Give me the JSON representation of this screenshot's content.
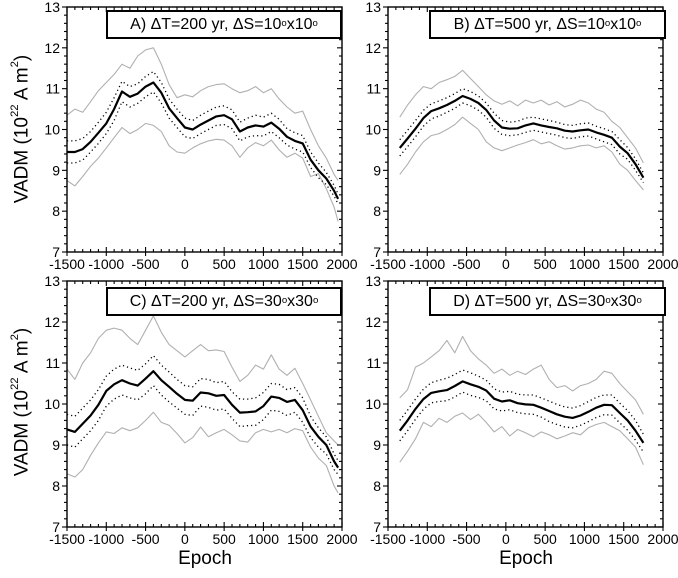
{
  "figure": {
    "xlabel": "Epoch",
    "ylabel_parts": {
      "prefix": "VADM (10",
      "sup1": "22",
      "mid": " A m",
      "sup2": "2",
      "suffix": ")"
    },
    "colors": {
      "mean_line": "#000000",
      "dotted_line": "#000000",
      "band_line": "#b0b0b0",
      "background": "#ffffff"
    }
  },
  "chart_data": [
    {
      "type": "line",
      "id": "A",
      "title_parts": {
        "main": "A) ΔT=200 yr, ΔS=10",
        "sup1": "o",
        "mid": "x10",
        "sup2": "o"
      },
      "xlabel": "Epoch",
      "ylabel": "VADM (10^22 A m^2)",
      "xlim": [
        -1500,
        2000
      ],
      "ylim": [
        7,
        13
      ],
      "xticks": [
        -1500,
        -1000,
        -500,
        0,
        500,
        1000,
        1500,
        2000
      ],
      "yticks": [
        7,
        8,
        9,
        10,
        11,
        12,
        13
      ],
      "x_minor_step": 100,
      "y_minor_step": 0.2,
      "grid": false,
      "legend": "none",
      "x": [
        -1500,
        -1400,
        -1300,
        -1200,
        -1100,
        -1000,
        -900,
        -800,
        -700,
        -600,
        -500,
        -400,
        -300,
        -200,
        -100,
        0,
        100,
        200,
        300,
        400,
        500,
        600,
        700,
        800,
        900,
        1000,
        1100,
        1200,
        1300,
        1400,
        1500,
        1600,
        1700,
        1800,
        1900,
        1950
      ],
      "series": [
        {
          "name": "upper-band-gray",
          "style": "gray",
          "values": [
            10.35,
            10.5,
            10.42,
            10.68,
            10.95,
            11.15,
            11.35,
            11.6,
            11.5,
            11.8,
            11.95,
            12.0,
            11.6,
            11.1,
            10.78,
            10.85,
            10.8,
            10.95,
            11.05,
            11.1,
            11.12,
            11.0,
            10.9,
            10.95,
            11.05,
            10.9,
            11.0,
            10.75,
            10.55,
            10.4,
            10.45,
            10.0,
            9.6,
            9.3,
            8.9,
            8.75
          ]
        },
        {
          "name": "upper-error-dotted",
          "style": "dotted",
          "values": [
            9.72,
            9.72,
            9.78,
            9.95,
            10.18,
            10.42,
            10.78,
            11.18,
            11.05,
            11.12,
            11.3,
            11.42,
            11.15,
            10.75,
            10.5,
            10.28,
            10.22,
            10.35,
            10.45,
            10.55,
            10.58,
            10.48,
            10.18,
            10.28,
            10.35,
            10.3,
            10.4,
            10.25,
            10.02,
            9.92,
            9.85,
            9.45,
            9.18,
            8.95,
            8.63,
            8.42
          ]
        },
        {
          "name": "mean-vadm",
          "style": "solid",
          "values": [
            9.45,
            9.45,
            9.52,
            9.7,
            9.92,
            10.15,
            10.5,
            10.93,
            10.8,
            10.88,
            11.05,
            11.15,
            10.9,
            10.52,
            10.28,
            10.05,
            10.0,
            10.12,
            10.22,
            10.32,
            10.35,
            10.25,
            9.95,
            10.05,
            10.1,
            10.07,
            10.17,
            10.02,
            9.82,
            9.72,
            9.66,
            9.26,
            9.0,
            8.8,
            8.5,
            8.3
          ]
        },
        {
          "name": "lower-error-dotted",
          "style": "dotted",
          "values": [
            9.18,
            9.18,
            9.25,
            9.45,
            9.66,
            9.9,
            10.22,
            10.68,
            10.55,
            10.64,
            10.8,
            10.92,
            10.65,
            10.28,
            10.05,
            9.82,
            9.78,
            9.9,
            10.0,
            10.1,
            10.12,
            10.02,
            9.72,
            9.82,
            9.85,
            9.84,
            9.95,
            9.8,
            9.62,
            9.52,
            9.45,
            9.07,
            8.82,
            8.65,
            8.37,
            8.18
          ]
        },
        {
          "name": "lower-band-gray",
          "style": "gray",
          "values": [
            8.75,
            8.62,
            8.85,
            9.1,
            9.3,
            9.55,
            9.8,
            10.05,
            9.9,
            10.0,
            10.15,
            10.1,
            9.95,
            9.6,
            9.45,
            9.42,
            9.55,
            9.65,
            9.72,
            9.76,
            9.74,
            9.6,
            9.32,
            9.55,
            9.68,
            9.6,
            9.74,
            9.5,
            9.32,
            9.42,
            9.3,
            8.85,
            8.92,
            8.55,
            8.1,
            7.75
          ]
        }
      ]
    },
    {
      "type": "line",
      "id": "B",
      "title_parts": {
        "main": "B) ΔT=500 yr, ΔS=10",
        "sup1": "o",
        "mid": "x10",
        "sup2": "o"
      },
      "xlabel": "Epoch",
      "ylabel": "VADM (10^22 A m^2)",
      "xlim": [
        -1500,
        2000
      ],
      "ylim": [
        7,
        13
      ],
      "xticks": [
        -1500,
        -1000,
        -500,
        0,
        500,
        1000,
        1500,
        2000
      ],
      "yticks": [
        7,
        8,
        9,
        10,
        11,
        12,
        13
      ],
      "x_minor_step": 100,
      "y_minor_step": 0.2,
      "grid": false,
      "legend": "none",
      "x": [
        -1350,
        -1250,
        -1150,
        -1050,
        -950,
        -850,
        -750,
        -650,
        -550,
        -450,
        -350,
        -250,
        -150,
        -50,
        50,
        150,
        250,
        350,
        450,
        550,
        650,
        750,
        850,
        950,
        1050,
        1150,
        1250,
        1350,
        1450,
        1550,
        1650,
        1750
      ],
      "series": [
        {
          "name": "upper-band-gray",
          "style": "gray",
          "values": [
            10.3,
            10.6,
            10.85,
            11.05,
            11.0,
            11.15,
            11.22,
            11.3,
            11.45,
            11.25,
            11.05,
            10.85,
            10.7,
            10.62,
            10.7,
            10.58,
            10.72,
            10.65,
            10.72,
            10.6,
            10.68,
            10.55,
            10.62,
            10.72,
            10.65,
            10.5,
            10.42,
            10.2,
            10.05,
            9.8,
            9.55,
            9.18
          ]
        },
        {
          "name": "upper-error-dotted",
          "style": "dotted",
          "values": [
            9.75,
            9.98,
            10.22,
            10.47,
            10.63,
            10.7,
            10.78,
            10.88,
            11.0,
            10.93,
            10.82,
            10.65,
            10.4,
            10.22,
            10.18,
            10.2,
            10.28,
            10.3,
            10.26,
            10.22,
            10.18,
            10.12,
            10.1,
            10.14,
            10.16,
            10.08,
            10.02,
            9.95,
            9.75,
            9.56,
            9.28,
            8.94
          ]
        },
        {
          "name": "mean-vadm",
          "style": "solid",
          "values": [
            9.55,
            9.78,
            10.02,
            10.28,
            10.45,
            10.52,
            10.6,
            10.7,
            10.82,
            10.75,
            10.65,
            10.48,
            10.22,
            10.05,
            10.02,
            10.03,
            10.1,
            10.15,
            10.1,
            10.06,
            10.03,
            9.97,
            9.95,
            9.98,
            10.0,
            9.93,
            9.87,
            9.8,
            9.58,
            9.42,
            9.15,
            8.82
          ]
        },
        {
          "name": "lower-error-dotted",
          "style": "dotted",
          "values": [
            9.35,
            9.58,
            9.82,
            10.08,
            10.26,
            10.33,
            10.42,
            10.52,
            10.65,
            10.58,
            10.47,
            10.3,
            10.03,
            9.88,
            9.85,
            9.87,
            9.93,
            9.98,
            9.94,
            9.9,
            9.86,
            9.8,
            9.78,
            9.82,
            9.84,
            9.77,
            9.7,
            9.63,
            9.4,
            9.27,
            9.0,
            8.7
          ]
        },
        {
          "name": "lower-band-gray",
          "style": "gray",
          "values": [
            8.9,
            9.15,
            9.45,
            9.7,
            9.85,
            9.9,
            10.0,
            10.12,
            10.3,
            10.15,
            10.0,
            9.7,
            9.55,
            9.48,
            9.55,
            9.62,
            9.68,
            9.75,
            9.65,
            9.7,
            9.6,
            9.52,
            9.55,
            9.6,
            9.62,
            9.55,
            9.6,
            9.45,
            9.15,
            9.0,
            8.75,
            8.52
          ]
        }
      ]
    },
    {
      "type": "line",
      "id": "C",
      "title_parts": {
        "main": "C) ΔT=200 yr, ΔS=30",
        "sup1": "o",
        "mid": "x30",
        "sup2": "o"
      },
      "xlabel": "Epoch",
      "ylabel": "VADM (10^22 A m^2)",
      "xlim": [
        -1500,
        2000
      ],
      "ylim": [
        7,
        13
      ],
      "xticks": [
        -1500,
        -1000,
        -500,
        0,
        500,
        1000,
        1500,
        2000
      ],
      "yticks": [
        7,
        8,
        9,
        10,
        11,
        12,
        13
      ],
      "x_minor_step": 100,
      "y_minor_step": 0.2,
      "grid": false,
      "legend": "none",
      "x": [
        -1500,
        -1400,
        -1300,
        -1200,
        -1100,
        -1000,
        -900,
        -800,
        -700,
        -600,
        -500,
        -400,
        -300,
        -200,
        -100,
        0,
        100,
        200,
        300,
        400,
        500,
        600,
        700,
        800,
        900,
        1000,
        1100,
        1200,
        1300,
        1400,
        1500,
        1600,
        1700,
        1800,
        1900,
        1950
      ],
      "series": [
        {
          "name": "upper-band-gray",
          "style": "gray",
          "values": [
            10.85,
            10.6,
            11.0,
            11.25,
            11.6,
            11.8,
            11.85,
            11.8,
            11.6,
            11.45,
            11.8,
            12.15,
            11.75,
            11.45,
            11.3,
            11.15,
            11.3,
            11.45,
            11.3,
            11.32,
            11.28,
            10.9,
            10.55,
            10.7,
            10.95,
            10.85,
            11.2,
            10.85,
            10.7,
            10.87,
            10.5,
            10.1,
            9.7,
            9.3,
            9.1,
            9.0
          ]
        },
        {
          "name": "upper-error-dotted",
          "style": "dotted",
          "values": [
            9.75,
            9.7,
            9.9,
            10.1,
            10.35,
            10.68,
            10.85,
            10.95,
            10.88,
            10.82,
            10.98,
            11.18,
            10.95,
            10.78,
            10.6,
            10.45,
            10.42,
            10.62,
            10.6,
            10.52,
            10.55,
            10.3,
            10.12,
            10.12,
            10.15,
            10.28,
            10.5,
            10.48,
            10.35,
            10.4,
            10.15,
            9.7,
            9.42,
            9.2,
            8.78,
            8.62
          ]
        },
        {
          "name": "mean-vadm",
          "style": "solid",
          "values": [
            9.38,
            9.32,
            9.52,
            9.72,
            9.98,
            10.32,
            10.48,
            10.58,
            10.5,
            10.45,
            10.62,
            10.8,
            10.58,
            10.42,
            10.25,
            10.1,
            10.08,
            10.28,
            10.26,
            10.2,
            10.22,
            9.98,
            9.79,
            9.8,
            9.82,
            9.95,
            10.18,
            10.15,
            10.05,
            10.1,
            9.85,
            9.45,
            9.2,
            9.0,
            8.6,
            8.45
          ]
        },
        {
          "name": "lower-error-dotted",
          "style": "dotted",
          "values": [
            9.0,
            8.95,
            9.15,
            9.35,
            9.6,
            9.95,
            10.12,
            10.22,
            10.15,
            10.1,
            10.25,
            10.45,
            10.22,
            10.05,
            9.9,
            9.75,
            9.72,
            9.95,
            9.92,
            9.85,
            9.88,
            9.65,
            9.45,
            9.47,
            9.48,
            9.62,
            9.85,
            9.82,
            9.72,
            9.8,
            9.55,
            9.18,
            8.95,
            8.78,
            8.4,
            8.28
          ]
        },
        {
          "name": "lower-band-gray",
          "style": "gray",
          "values": [
            8.3,
            8.22,
            8.4,
            8.75,
            9.05,
            9.32,
            9.28,
            9.42,
            9.35,
            9.42,
            9.6,
            9.8,
            9.55,
            9.48,
            9.28,
            9.05,
            9.18,
            9.44,
            9.2,
            9.3,
            9.38,
            9.25,
            9.1,
            9.07,
            9.3,
            9.38,
            9.32,
            9.38,
            9.3,
            9.4,
            9.35,
            8.95,
            8.68,
            8.5,
            8.0,
            7.83
          ]
        }
      ]
    },
    {
      "type": "line",
      "id": "D",
      "title_parts": {
        "main": "D) ΔT=500 yr, ΔS=30",
        "sup1": "o",
        "mid": "x30",
        "sup2": "o"
      },
      "xlabel": "Epoch",
      "ylabel": "VADM (10^22 A m^2)",
      "xlim": [
        -1500,
        2000
      ],
      "ylim": [
        7,
        13
      ],
      "xticks": [
        -1500,
        -1000,
        -500,
        0,
        500,
        1000,
        1500,
        2000
      ],
      "yticks": [
        7,
        8,
        9,
        10,
        11,
        12,
        13
      ],
      "x_minor_step": 100,
      "y_minor_step": 0.2,
      "grid": false,
      "legend": "none",
      "x": [
        -1350,
        -1250,
        -1150,
        -1050,
        -950,
        -850,
        -750,
        -650,
        -550,
        -450,
        -350,
        -250,
        -150,
        -50,
        50,
        150,
        250,
        350,
        450,
        550,
        650,
        750,
        850,
        950,
        1050,
        1150,
        1250,
        1350,
        1450,
        1550,
        1650,
        1750
      ],
      "series": [
        {
          "name": "upper-band-gray",
          "style": "gray",
          "values": [
            10.15,
            10.35,
            10.9,
            11.0,
            11.15,
            11.3,
            11.55,
            11.25,
            11.65,
            11.3,
            11.1,
            10.95,
            10.75,
            10.85,
            10.7,
            10.8,
            10.72,
            10.85,
            10.95,
            10.6,
            10.4,
            10.45,
            10.32,
            10.45,
            10.5,
            10.6,
            10.8,
            10.75,
            10.5,
            10.3,
            10.1,
            9.75
          ]
        },
        {
          "name": "upper-error-dotted",
          "style": "dotted",
          "values": [
            9.6,
            9.85,
            10.12,
            10.36,
            10.52,
            10.58,
            10.63,
            10.72,
            10.83,
            10.76,
            10.68,
            10.58,
            10.37,
            10.29,
            10.31,
            10.24,
            10.22,
            10.22,
            10.15,
            10.07,
            9.99,
            9.93,
            9.9,
            9.96,
            10.06,
            10.16,
            10.22,
            10.22,
            10.02,
            9.84,
            9.6,
            9.26
          ]
        },
        {
          "name": "mean-vadm",
          "style": "solid",
          "values": [
            9.35,
            9.6,
            9.88,
            10.12,
            10.27,
            10.31,
            10.34,
            10.44,
            10.55,
            10.48,
            10.42,
            10.33,
            10.13,
            10.06,
            10.09,
            10.02,
            9.99,
            9.98,
            9.91,
            9.83,
            9.75,
            9.69,
            9.66,
            9.72,
            9.81,
            9.91,
            9.98,
            9.97,
            9.78,
            9.6,
            9.35,
            9.05
          ]
        },
        {
          "name": "lower-error-dotted",
          "style": "dotted",
          "values": [
            9.1,
            9.35,
            9.63,
            9.87,
            10.03,
            10.06,
            10.08,
            10.17,
            10.29,
            10.21,
            10.16,
            10.08,
            9.88,
            9.83,
            9.86,
            9.79,
            9.76,
            9.75,
            9.68,
            9.57,
            9.5,
            9.44,
            9.42,
            9.48,
            9.57,
            9.67,
            9.74,
            9.73,
            9.54,
            9.36,
            9.12,
            8.83
          ]
        },
        {
          "name": "lower-band-gray",
          "style": "gray",
          "values": [
            8.58,
            8.85,
            9.15,
            9.55,
            9.45,
            9.65,
            9.55,
            9.7,
            9.78,
            9.62,
            9.75,
            9.55,
            9.32,
            9.45,
            9.22,
            9.38,
            9.3,
            9.2,
            9.32,
            9.25,
            9.15,
            9.22,
            9.3,
            9.25,
            9.42,
            9.5,
            9.55,
            9.45,
            9.35,
            9.15,
            8.95,
            8.52
          ]
        }
      ]
    }
  ]
}
